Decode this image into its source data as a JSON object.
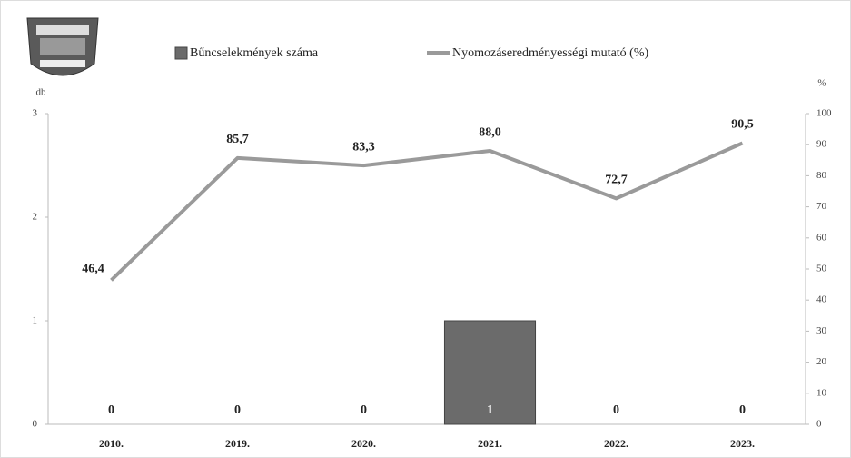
{
  "chart_data": {
    "type": "bar",
    "y_label": "db",
    "y2_label": "%",
    "categories": [
      "2010.",
      "2019.",
      "2020.",
      "2021.",
      "2022.",
      "2023."
    ],
    "series": [
      {
        "name": "Bűncselekmények száma",
        "color": "#6b6b6b",
        "values": [
          0,
          0,
          0,
          1,
          0,
          0
        ]
      },
      {
        "name": "Nyomozáseredményességi mutató (%)",
        "color": "#9a9a9a",
        "type": "line",
        "axis": "y2",
        "values": [
          46.4,
          85.7,
          83.3,
          88.0,
          72.7,
          90.5
        ],
        "value_labels": [
          "46,4",
          "85,7",
          "83,3",
          "88,0",
          "72,7",
          "90,5"
        ]
      }
    ],
    "ylim": [
      0,
      3
    ],
    "yticks": [
      0,
      1,
      2,
      3
    ],
    "y2lim": [
      0,
      100
    ],
    "y2ticks": [
      0,
      10,
      20,
      30,
      40,
      50,
      60,
      70,
      80,
      90,
      100
    ]
  }
}
